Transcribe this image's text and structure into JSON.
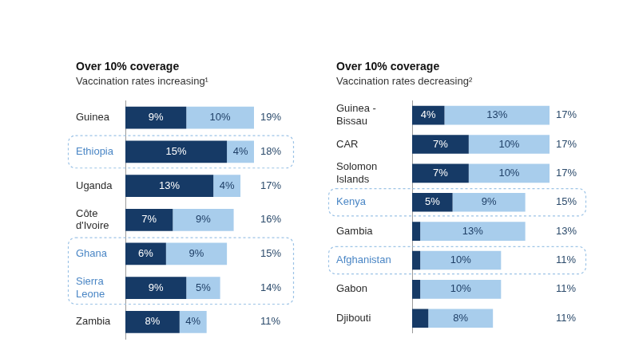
{
  "chart_data": [
    {
      "type": "bar",
      "orientation": "horizontal",
      "stacked": true,
      "data_labels": true,
      "tick_labels": "y",
      "grid": false,
      "title": "Over 10% coverage",
      "subtitle": "Vaccination rates increasing¹",
      "categories": [
        "Guinea",
        "Ethiopia",
        "Uganda",
        "Côte d'Ivoire",
        "Ghana",
        "Sierra Leone",
        "Zambia"
      ],
      "series": [
        {
          "color": "#163a66",
          "values": [
            9,
            15,
            13,
            7,
            6,
            9,
            8
          ],
          "value_labels": [
            "9%",
            "15%",
            "13%",
            "7%",
            "6%",
            "9%",
            "8%"
          ]
        },
        {
          "color": "#a8cdec",
          "values": [
            10,
            4,
            4,
            9,
            9,
            5,
            4
          ],
          "value_labels": [
            "10%",
            "4%",
            "4%",
            "9%",
            "9%",
            "5%",
            "4%"
          ]
        }
      ],
      "totals": [
        19,
        18,
        17,
        16,
        15,
        14,
        11
      ],
      "total_labels": [
        "19%",
        "18%",
        "17%",
        "16%",
        "15%",
        "14%",
        "11%"
      ],
      "highlight_groups": [
        [
          "Ethiopia"
        ],
        [
          "Ghana",
          "Sierra Leone"
        ]
      ],
      "xlim": [
        0,
        19
      ]
    },
    {
      "type": "bar",
      "orientation": "horizontal",
      "stacked": true,
      "data_labels": true,
      "tick_labels": "y",
      "grid": false,
      "title": "Over 10% coverage",
      "subtitle": "Vaccination rates decreasing²",
      "categories": [
        "Guinea - Bissau",
        "CAR",
        "Solomon Islands",
        "Kenya",
        "Gambia",
        "Afghanistan",
        "Gabon",
        "Djibouti"
      ],
      "series": [
        {
          "color": "#163a66",
          "values": [
            4,
            7,
            7,
            5,
            1,
            1,
            1,
            2
          ],
          "value_labels": [
            "4%",
            "7%",
            "7%",
            "5%",
            null,
            null,
            null,
            null
          ]
        },
        {
          "color": "#a8cdec",
          "values": [
            13,
            10,
            10,
            9,
            13,
            10,
            10,
            8
          ],
          "value_labels": [
            "13%",
            "10%",
            "10%",
            "9%",
            "13%",
            "10%",
            "10%",
            "8%"
          ]
        }
      ],
      "totals": [
        17,
        17,
        17,
        15,
        13,
        11,
        11,
        11
      ],
      "total_labels": [
        "17%",
        "17%",
        "17%",
        "15%",
        "13%",
        "11%",
        "11%",
        "11%"
      ],
      "highlight_groups": [
        [
          "Kenya"
        ],
        [
          "Afghanistan"
        ]
      ],
      "xlim": [
        0,
        17
      ]
    }
  ]
}
